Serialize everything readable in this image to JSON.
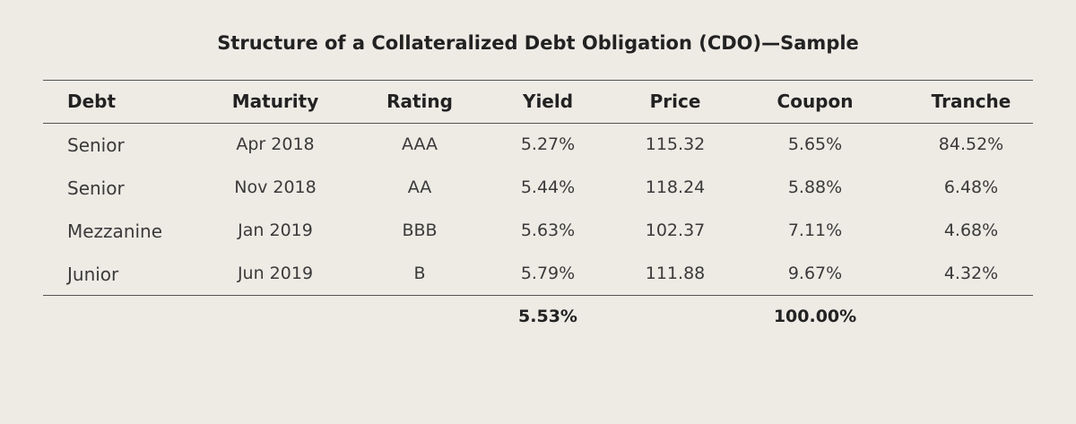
{
  "title": "Structure of a Collateralized Debt Obligation (CDO)—Sample",
  "table": {
    "headers": [
      "Debt",
      "Maturity",
      "Rating",
      "Yield",
      "Price",
      "Coupon",
      "Tranche"
    ],
    "rows": [
      [
        "Senior",
        "Apr 2018",
        "AAA",
        "5.27%",
        "115.32",
        "5.65%",
        "84.52%"
      ],
      [
        "Senior",
        "Nov 2018",
        "AA",
        "5.44%",
        "118.24",
        "5.88%",
        "6.48%"
      ],
      [
        "Mezzanine",
        "Jan 2019",
        "BBB",
        "5.63%",
        "102.37",
        "7.11%",
        "4.68%"
      ],
      [
        "Junior",
        "Jun 2019",
        "B",
        "5.79%",
        "111.88",
        "9.67%",
        "4.32%"
      ]
    ],
    "totals": {
      "yield": "5.53%",
      "coupon": "100.00%"
    }
  }
}
